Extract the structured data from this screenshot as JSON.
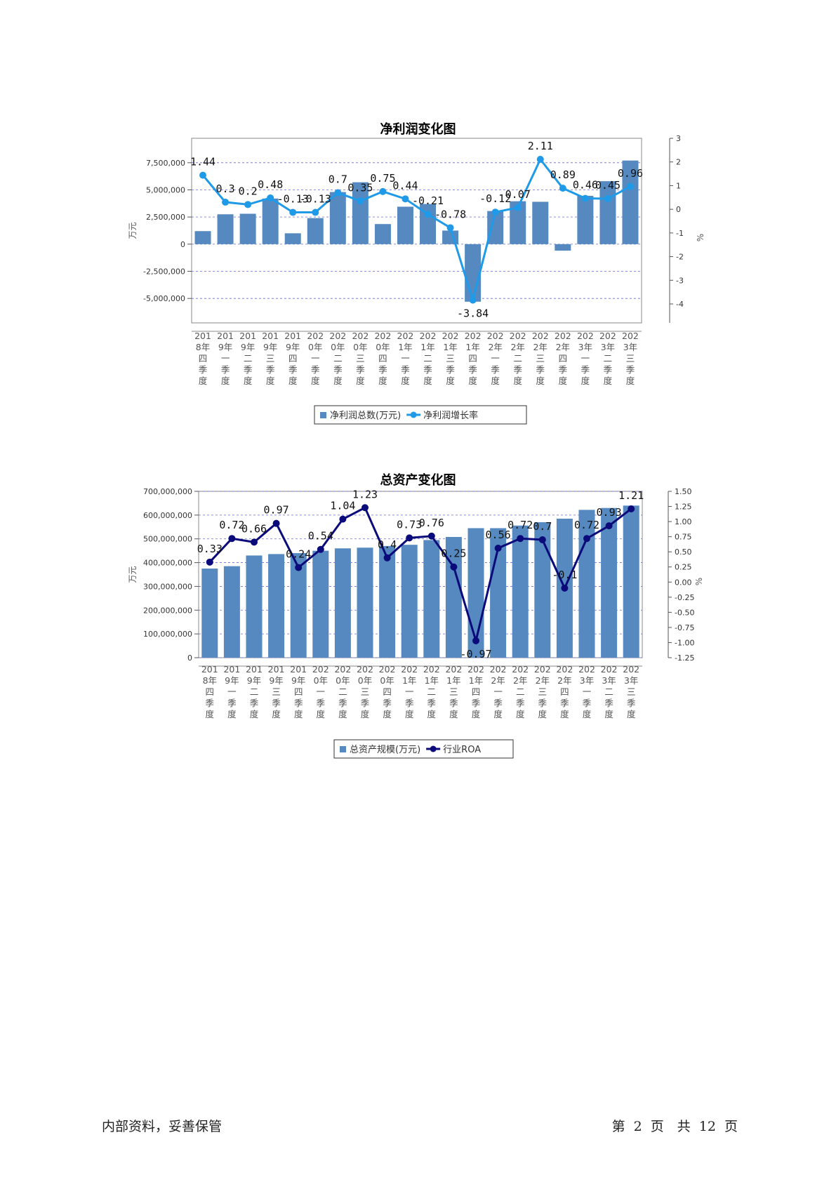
{
  "colors": {
    "bar": "#5689c0",
    "line1": "#1e9ae8",
    "line2": "#0a0a7a",
    "grid": "#6666ee"
  },
  "footer": {
    "left": "内部资料，妥善保管",
    "right": "第 2 页　共 12 页"
  },
  "chart_data": [
    {
      "type": "bar+line",
      "title": "净利润变化图",
      "ylabel": "万元",
      "y2label": "%",
      "categories": [
        [
          "201",
          "8年",
          "四",
          "季",
          "度"
        ],
        [
          "201",
          "9年",
          "一",
          "季",
          "度"
        ],
        [
          "201",
          "9年",
          "二",
          "季",
          "度"
        ],
        [
          "201",
          "9年",
          "三",
          "季",
          "度"
        ],
        [
          "201",
          "9年",
          "四",
          "季",
          "度"
        ],
        [
          "202",
          "0年",
          "一",
          "季",
          "度"
        ],
        [
          "202",
          "0年",
          "二",
          "季",
          "度"
        ],
        [
          "202",
          "0年",
          "三",
          "季",
          "度"
        ],
        [
          "202",
          "0年",
          "四",
          "季",
          "度"
        ],
        [
          "202",
          "1年",
          "一",
          "季",
          "度"
        ],
        [
          "202",
          "1年",
          "二",
          "季",
          "度"
        ],
        [
          "202",
          "1年",
          "三",
          "季",
          "度"
        ],
        [
          "202",
          "1年",
          "四",
          "季",
          "度"
        ],
        [
          "202",
          "2年",
          "一",
          "季",
          "度"
        ],
        [
          "202",
          "2年",
          "二",
          "季",
          "度"
        ],
        [
          "202",
          "2年",
          "三",
          "季",
          "度"
        ],
        [
          "202",
          "2年",
          "四",
          "季",
          "度"
        ],
        [
          "202",
          "3年",
          "一",
          "季",
          "度"
        ],
        [
          "202",
          "3年",
          "二",
          "季",
          "度"
        ],
        [
          "202",
          "3年",
          "三",
          "季",
          "度"
        ]
      ],
      "bar_series": {
        "name": "净利润总数(万元)",
        "values": [
          1200000,
          2750000,
          2800000,
          4200000,
          1000000,
          2400000,
          4800000,
          5700000,
          1850000,
          3450000,
          3700000,
          1250000,
          -5300000,
          3050000,
          3950000,
          3900000,
          -600000,
          4450000,
          5800000,
          7700000
        ]
      },
      "line_series": {
        "name": "净利润增长率",
        "values": [
          1.44,
          0.3,
          0.2,
          0.48,
          -0.13,
          -0.13,
          0.7,
          0.35,
          0.75,
          0.44,
          -0.21,
          -0.78,
          -3.84,
          -0.12,
          0.07,
          2.11,
          0.89,
          0.46,
          0.45,
          0.96
        ],
        "labels": [
          "1.44",
          "0.3",
          "0.2",
          "0.48",
          "-0.13",
          "-0.13",
          "0.7",
          "0.35",
          "0.75",
          "0.44",
          "-0.21",
          "-0.78",
          "-3.84",
          "-0.12",
          "0.07",
          "2.11",
          "0.89",
          "0.46",
          "0.45",
          "0.96"
        ]
      },
      "ylim": [
        -7250000,
        9750000
      ],
      "y_ticks": [
        -5000000,
        -2500000,
        0,
        2500000,
        5000000,
        7500000
      ],
      "y_tick_labels": [
        "-5,000,000",
        "-2,500,000",
        "0",
        "2,500,000",
        "5,000,000",
        "7,500,000"
      ],
      "y2lim": [
        -4.8,
        3.0
      ],
      "y2_ticks": [
        -4,
        -3,
        -2,
        -1,
        0,
        1,
        2,
        3
      ],
      "y2_tick_labels": [
        "-4",
        "-3",
        "-2",
        "-1",
        "0",
        "1",
        "2",
        "3"
      ],
      "grid": true,
      "legend_position": "bottom"
    },
    {
      "type": "bar+line",
      "title": "总资产变化图",
      "ylabel": "万元",
      "y2label": "%",
      "categories": [
        [
          "201",
          "8年",
          "四",
          "季",
          "度"
        ],
        [
          "201",
          "9年",
          "一",
          "季",
          "度"
        ],
        [
          "201",
          "9年",
          "二",
          "季",
          "度"
        ],
        [
          "201",
          "9年",
          "三",
          "季",
          "度"
        ],
        [
          "201",
          "9年",
          "四",
          "季",
          "度"
        ],
        [
          "202",
          "0年",
          "一",
          "季",
          "度"
        ],
        [
          "202",
          "0年",
          "二",
          "季",
          "度"
        ],
        [
          "202",
          "0年",
          "三",
          "季",
          "度"
        ],
        [
          "202",
          "0年",
          "四",
          "季",
          "度"
        ],
        [
          "202",
          "1年",
          "一",
          "季",
          "度"
        ],
        [
          "202",
          "1年",
          "二",
          "季",
          "度"
        ],
        [
          "202",
          "1年",
          "三",
          "季",
          "度"
        ],
        [
          "202",
          "1年",
          "四",
          "季",
          "度"
        ],
        [
          "202",
          "2年",
          "一",
          "季",
          "度"
        ],
        [
          "202",
          "2年",
          "二",
          "季",
          "度"
        ],
        [
          "202",
          "2年",
          "三",
          "季",
          "度"
        ],
        [
          "202",
          "2年",
          "四",
          "季",
          "度"
        ],
        [
          "202",
          "3年",
          "一",
          "季",
          "度"
        ],
        [
          "202",
          "3年",
          "二",
          "季",
          "度"
        ],
        [
          "202",
          "3年",
          "三",
          "季",
          "度"
        ]
      ],
      "bar_series": {
        "name": "总资产规模(万元)",
        "values": [
          375000000,
          385000000,
          430000000,
          436000000,
          440000000,
          450000000,
          460000000,
          463000000,
          470000000,
          475000000,
          495000000,
          508000000,
          545000000,
          545000000,
          556000000,
          570000000,
          585000000,
          622000000,
          630000000,
          640000000
        ]
      },
      "line_series": {
        "name": "行业ROA",
        "values": [
          0.33,
          0.72,
          0.66,
          0.97,
          0.24,
          0.54,
          1.04,
          1.23,
          0.4,
          0.73,
          0.76,
          0.25,
          -0.97,
          0.56,
          0.72,
          0.7,
          -0.1,
          0.72,
          0.93,
          1.21
        ],
        "labels": [
          "0.33",
          "0.72",
          "0.66",
          "0.97",
          "0.24",
          "0.54",
          "1.04",
          "1.23",
          "0.4",
          "0.73",
          "0.76",
          "0.25",
          "-0.97",
          "0.56",
          "0.72",
          "0.7",
          "-0.1",
          "0.72",
          "0.93",
          "1.21"
        ]
      },
      "ylim": [
        0,
        700000000
      ],
      "y_ticks": [
        0,
        100000000,
        200000000,
        300000000,
        400000000,
        500000000,
        600000000,
        700000000
      ],
      "y_tick_labels": [
        "0",
        "100,000,000",
        "200,000,000",
        "300,000,000",
        "400,000,000",
        "500,000,000",
        "600,000,000",
        "700,000,000"
      ],
      "y2lim": [
        -1.25,
        1.5
      ],
      "y2_ticks": [
        -1.25,
        -1.0,
        -0.75,
        -0.5,
        -0.25,
        0.0,
        0.25,
        0.5,
        0.75,
        1.0,
        1.25,
        1.5
      ],
      "y2_tick_labels": [
        "-1.25",
        "-1.00",
        "-0.75",
        "-0.50",
        "-0.25",
        "0.00",
        "0.25",
        "0.50",
        "0.75",
        "1.00",
        "1.25",
        "1.50"
      ],
      "grid": true,
      "legend_position": "bottom"
    }
  ]
}
